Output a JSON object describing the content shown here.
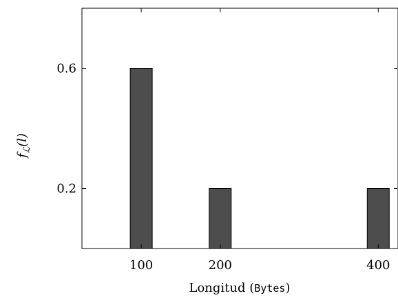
{
  "chart_data": {
    "type": "bar",
    "x": [
      100,
      200,
      400
    ],
    "values": [
      0.6,
      0.2,
      0.2
    ],
    "xticks": [
      "100",
      "200",
      "400"
    ],
    "yticks": [
      0.2,
      0.6
    ],
    "ytick_labels": [
      "0.2",
      "0.6"
    ],
    "xlim": [
      25,
      425
    ],
    "ylim": [
      0,
      0.8
    ],
    "xlabel": {
      "prefix": "Longitud (",
      "unit": "Bytes",
      "suffix": ")"
    },
    "ylabel": {
      "f": "f",
      "sub": "ℒ",
      "paren": "(l)"
    },
    "bar_color": "#4d4d4d",
    "grid": false,
    "legend": "none"
  }
}
